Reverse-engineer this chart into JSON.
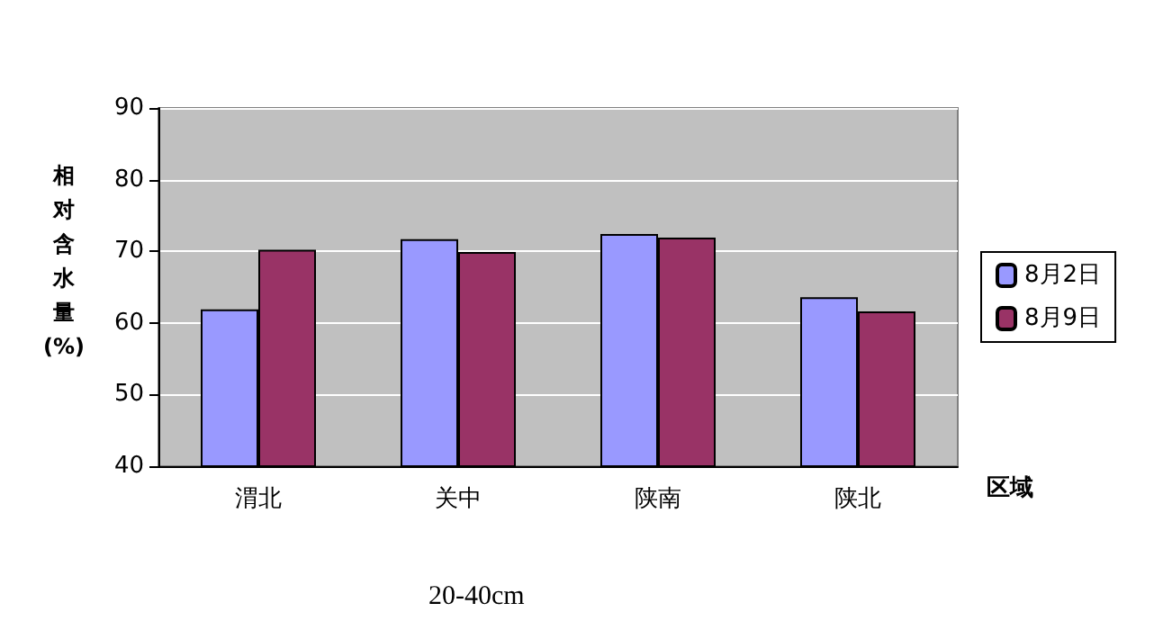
{
  "chart_data": {
    "type": "bar",
    "ylabel": "相对含水量(%)",
    "xlabel": "区域",
    "annotations": [
      "20-40cm"
    ],
    "categories": [
      "渭北",
      "关中",
      "陕南",
      "陕北"
    ],
    "series": [
      {
        "name": "8月2日",
        "color": "#9999ff",
        "values": [
          61.9,
          71.7,
          72.4,
          63.6
        ]
      },
      {
        "name": "8月9日",
        "color": "#993366",
        "values": [
          70.2,
          69.9,
          71.9,
          61.6
        ]
      }
    ],
    "ylim": [
      40,
      90
    ],
    "yticks": [
      40,
      50,
      60,
      70,
      80,
      90
    ],
    "grid": "y",
    "legend": "right"
  }
}
